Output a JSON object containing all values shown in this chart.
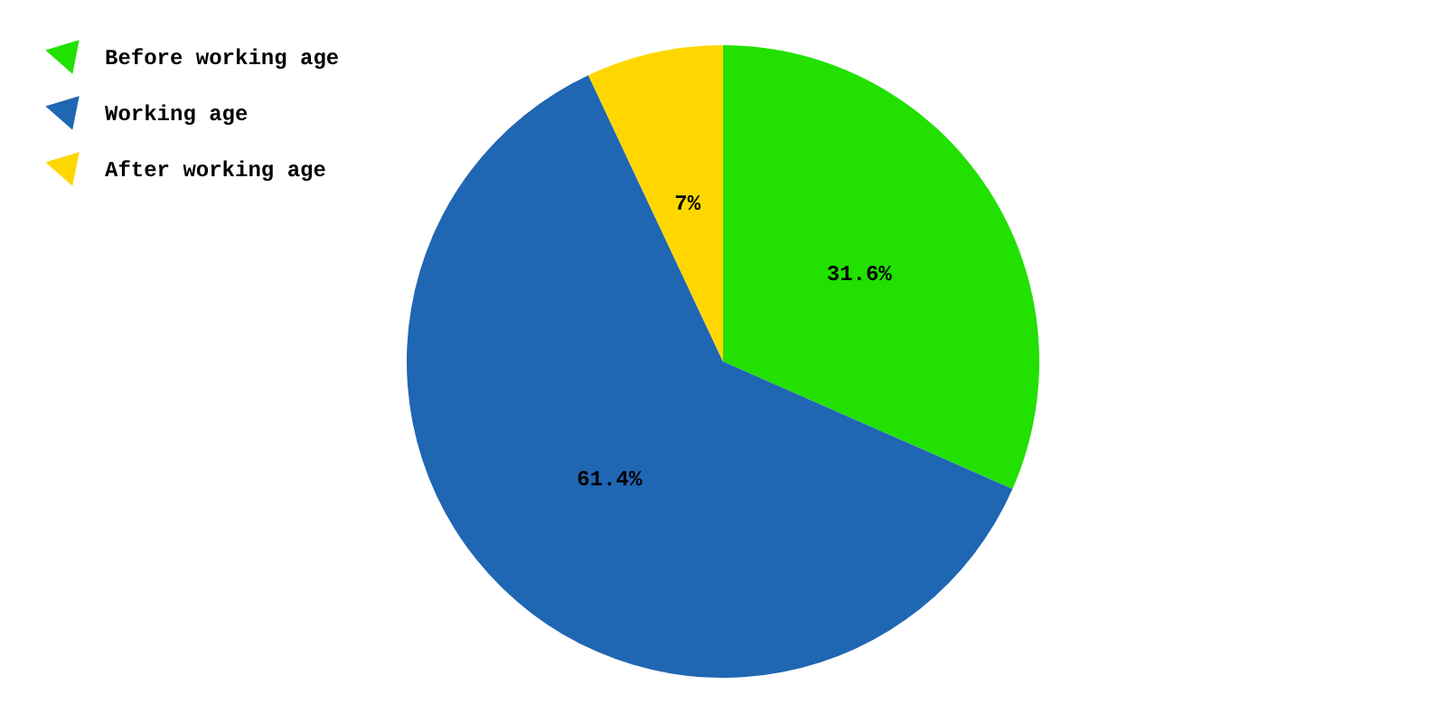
{
  "chart_data": {
    "type": "pie",
    "categories": [
      "Before working age",
      "Working age",
      "After working age"
    ],
    "values": [
      31.6,
      61.4,
      7
    ],
    "colors": [
      "#22e000",
      "#1f66b3",
      "#ffd700"
    ],
    "value_labels": [
      "31.6%",
      "61.4%",
      "7%"
    ],
    "legend": "top left"
  }
}
